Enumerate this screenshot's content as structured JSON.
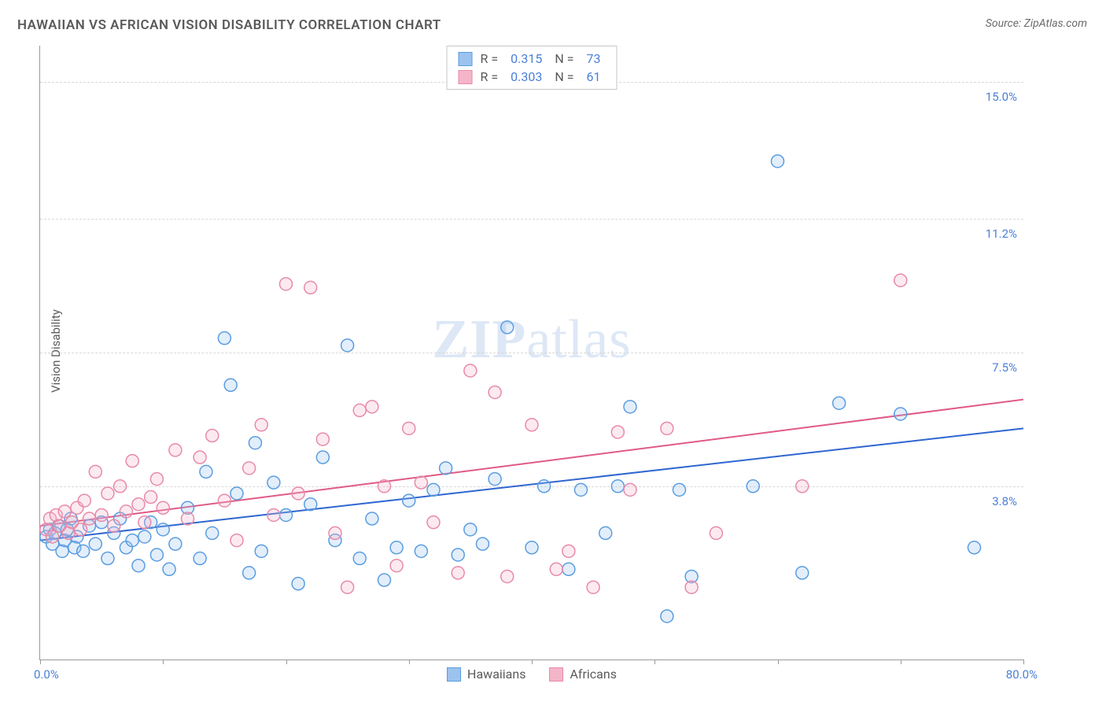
{
  "title": "HAWAIIAN VS AFRICAN VISION DISABILITY CORRELATION CHART",
  "source_label": "Source: ZipAtlas.com",
  "ylabel": "Vision Disability",
  "watermark": {
    "bold": "ZIP",
    "rest": "atlas"
  },
  "chart": {
    "type": "scatter",
    "xlim": [
      0,
      80
    ],
    "ylim": [
      -1,
      16
    ],
    "x_ticks": [
      0,
      10,
      20,
      30,
      40,
      50,
      60,
      70,
      80
    ],
    "x_limit_labels": {
      "min": "0.0%",
      "max": "80.0%"
    },
    "y_gridlines": [
      {
        "value": 3.8,
        "label": "3.8%"
      },
      {
        "value": 7.5,
        "label": "7.5%"
      },
      {
        "value": 11.2,
        "label": "11.2%"
      },
      {
        "value": 15.0,
        "label": "15.0%"
      }
    ],
    "background_color": "#ffffff",
    "grid_color": "#d8d8d8",
    "axis_color": "#9a9a9a",
    "marker_radius": 8,
    "marker_stroke_width": 1.5,
    "marker_fill_opacity": 0.28,
    "trendline_width": 2
  },
  "series": [
    {
      "key": "hawaiians",
      "label": "Hawaiians",
      "R": "0.315",
      "N": "73",
      "fill": "#9cc3f0",
      "stroke": "#5a9de0",
      "line_color": "#2f66d0",
      "trend": {
        "x1": 0,
        "y1": 2.3,
        "x2": 80,
        "y2": 5.4
      },
      "points": [
        [
          0.5,
          2.4
        ],
        [
          0.8,
          2.6
        ],
        [
          1.0,
          2.2
        ],
        [
          1.2,
          2.5
        ],
        [
          1.5,
          2.7
        ],
        [
          1.8,
          2.0
        ],
        [
          2.0,
          2.3
        ],
        [
          2.2,
          2.6
        ],
        [
          2.5,
          2.9
        ],
        [
          2.8,
          2.1
        ],
        [
          3.0,
          2.4
        ],
        [
          3.5,
          2.0
        ],
        [
          4.0,
          2.7
        ],
        [
          4.5,
          2.2
        ],
        [
          5.0,
          2.8
        ],
        [
          5.5,
          1.8
        ],
        [
          6.0,
          2.5
        ],
        [
          6.5,
          2.9
        ],
        [
          7.0,
          2.1
        ],
        [
          7.5,
          2.3
        ],
        [
          8.0,
          1.6
        ],
        [
          8.5,
          2.4
        ],
        [
          9.0,
          2.8
        ],
        [
          9.5,
          1.9
        ],
        [
          10.0,
          2.6
        ],
        [
          10.5,
          1.5
        ],
        [
          11.0,
          2.2
        ],
        [
          12.0,
          3.2
        ],
        [
          13.0,
          1.8
        ],
        [
          13.5,
          4.2
        ],
        [
          14.0,
          2.5
        ],
        [
          15.0,
          7.9
        ],
        [
          15.5,
          6.6
        ],
        [
          16.0,
          3.6
        ],
        [
          17.0,
          1.4
        ],
        [
          17.5,
          5.0
        ],
        [
          18.0,
          2.0
        ],
        [
          19.0,
          3.9
        ],
        [
          20.0,
          3.0
        ],
        [
          21.0,
          1.1
        ],
        [
          22.0,
          3.3
        ],
        [
          23.0,
          4.6
        ],
        [
          24.0,
          2.3
        ],
        [
          25.0,
          7.7
        ],
        [
          26.0,
          1.8
        ],
        [
          27.0,
          2.9
        ],
        [
          28.0,
          1.2
        ],
        [
          29.0,
          2.1
        ],
        [
          30.0,
          3.4
        ],
        [
          31.0,
          2.0
        ],
        [
          32.0,
          3.7
        ],
        [
          33.0,
          4.3
        ],
        [
          34.0,
          1.9
        ],
        [
          35.0,
          2.6
        ],
        [
          36.0,
          2.2
        ],
        [
          37.0,
          4.0
        ],
        [
          38.0,
          8.2
        ],
        [
          40.0,
          2.1
        ],
        [
          41.0,
          3.8
        ],
        [
          43.0,
          1.5
        ],
        [
          44.0,
          3.7
        ],
        [
          46.0,
          2.5
        ],
        [
          47.0,
          3.8
        ],
        [
          48.0,
          6.0
        ],
        [
          51.0,
          0.2
        ],
        [
          52.0,
          3.7
        ],
        [
          53.0,
          1.3
        ],
        [
          58.0,
          3.8
        ],
        [
          60.0,
          12.8
        ],
        [
          62.0,
          1.4
        ],
        [
          65.0,
          6.1
        ],
        [
          70.0,
          5.8
        ],
        [
          76.0,
          2.1
        ]
      ]
    },
    {
      "key": "africans",
      "label": "Africans",
      "R": "0.303",
      "N": "61",
      "fill": "#f5b5c8",
      "stroke": "#e88aa8",
      "line_color": "#e05a85",
      "trend": {
        "x1": 0,
        "y1": 2.7,
        "x2": 80,
        "y2": 6.2
      },
      "points": [
        [
          0.5,
          2.6
        ],
        [
          0.8,
          2.9
        ],
        [
          1.0,
          2.4
        ],
        [
          1.3,
          3.0
        ],
        [
          1.6,
          2.7
        ],
        [
          2.0,
          3.1
        ],
        [
          2.3,
          2.5
        ],
        [
          2.6,
          2.8
        ],
        [
          3.0,
          3.2
        ],
        [
          3.3,
          2.6
        ],
        [
          3.6,
          3.4
        ],
        [
          4.0,
          2.9
        ],
        [
          4.5,
          4.2
        ],
        [
          5.0,
          3.0
        ],
        [
          5.5,
          3.6
        ],
        [
          6.0,
          2.7
        ],
        [
          6.5,
          3.8
        ],
        [
          7.0,
          3.1
        ],
        [
          7.5,
          4.5
        ],
        [
          8.0,
          3.3
        ],
        [
          8.5,
          2.8
        ],
        [
          9.0,
          3.5
        ],
        [
          9.5,
          4.0
        ],
        [
          10.0,
          3.2
        ],
        [
          11.0,
          4.8
        ],
        [
          12.0,
          2.9
        ],
        [
          13.0,
          4.6
        ],
        [
          14.0,
          5.2
        ],
        [
          15.0,
          3.4
        ],
        [
          16.0,
          2.3
        ],
        [
          17.0,
          4.3
        ],
        [
          18.0,
          5.5
        ],
        [
          19.0,
          3.0
        ],
        [
          20.0,
          9.4
        ],
        [
          21.0,
          3.6
        ],
        [
          22.0,
          9.3
        ],
        [
          23.0,
          5.1
        ],
        [
          24.0,
          2.5
        ],
        [
          25.0,
          1.0
        ],
        [
          26.0,
          5.9
        ],
        [
          27.0,
          6.0
        ],
        [
          28.0,
          3.8
        ],
        [
          29.0,
          1.6
        ],
        [
          30.0,
          5.4
        ],
        [
          31.0,
          3.9
        ],
        [
          32.0,
          2.8
        ],
        [
          34.0,
          1.4
        ],
        [
          35.0,
          7.0
        ],
        [
          37.0,
          6.4
        ],
        [
          38.0,
          1.3
        ],
        [
          40.0,
          5.5
        ],
        [
          42.0,
          1.5
        ],
        [
          43.0,
          2.0
        ],
        [
          45.0,
          1.0
        ],
        [
          47.0,
          5.3
        ],
        [
          48.0,
          3.7
        ],
        [
          51.0,
          5.4
        ],
        [
          53.0,
          1.0
        ],
        [
          55.0,
          2.5
        ],
        [
          70.0,
          9.5
        ],
        [
          62.0,
          3.8
        ]
      ]
    }
  ],
  "legend_box": {
    "r_label": "R =",
    "n_label": "N ="
  },
  "bottom_legend_labels": [
    "Hawaiians",
    "Africans"
  ]
}
